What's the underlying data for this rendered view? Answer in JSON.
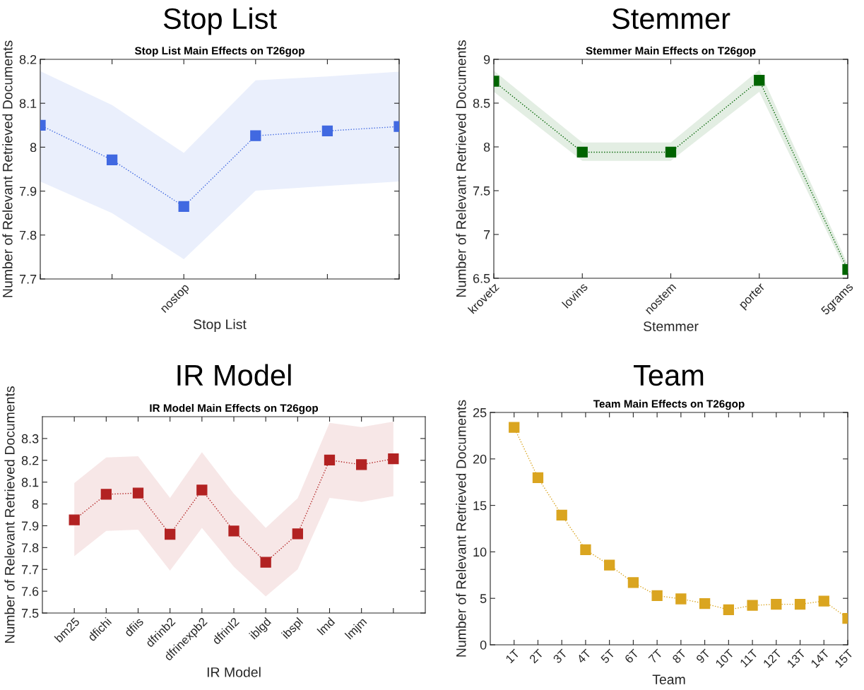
{
  "chart_data": [
    {
      "type": "line",
      "title": "Stop List",
      "subtitle": "Stop List Main Effects on T26gop",
      "xlabel": "Stop List",
      "ylabel": "Number of Relevant Retrieved Documents",
      "categories": [
        null,
        null,
        "nostop",
        null,
        null,
        null
      ],
      "ylim": [
        7.7,
        8.2
      ],
      "yticks": [
        7.7,
        7.8,
        7.9,
        8,
        8.1,
        8.2
      ],
      "marker": "square",
      "line_style": "dotted",
      "series": [
        {
          "color": "#4169e1",
          "values": [
            8.05,
            7.971,
            7.865,
            8.026,
            8.037,
            8.047
          ],
          "lower": [
            7.922,
            7.85,
            7.745,
            7.901,
            7.912,
            7.922
          ],
          "upper": [
            8.173,
            8.096,
            7.987,
            8.152,
            8.161,
            8.172
          ]
        }
      ]
    },
    {
      "type": "line",
      "title": "Stemmer",
      "subtitle": "Stemmer Main Effects on T26gop",
      "xlabel": "Stemmer",
      "ylabel": "Number of Relevant Retrieved Documents",
      "categories": [
        "krovetz",
        "lovins",
        "nostem",
        "porter",
        "5grams"
      ],
      "ylim": [
        6.5,
        9
      ],
      "yticks": [
        6.5,
        7,
        7.5,
        8,
        8.5,
        9
      ],
      "marker": "square",
      "line_style": "dotted",
      "series": [
        {
          "color": "#006400",
          "values": [
            8.75,
            7.94,
            7.94,
            8.76,
            6.6
          ],
          "lower": [
            8.63,
            7.84,
            7.84,
            8.63,
            6.54
          ],
          "upper": [
            8.87,
            8.05,
            8.05,
            8.88,
            6.66
          ]
        }
      ]
    },
    {
      "type": "line",
      "title": "IR Model",
      "subtitle": "IR Model Main Effects on T26gop",
      "xlabel": "IR Model",
      "ylabel": "Number of Relevant Retrieved Documents",
      "categories": [
        "bm25",
        "dfichi",
        "dfiis",
        "dfrinb2",
        "dfrinexpb2",
        "dfrinl2",
        "iblgd",
        "ibspl",
        "lmd",
        "lmjm",
        null
      ],
      "ylim": [
        7.5,
        8.4
      ],
      "yticks": [
        7.5,
        7.6,
        7.7,
        7.8,
        7.9,
        8,
        8.1,
        8.2,
        8.3
      ],
      "marker": "square",
      "line_style": "dotted",
      "series": [
        {
          "color": "#b22222",
          "values": [
            7.927,
            8.044,
            8.05,
            7.861,
            8.064,
            7.876,
            7.733,
            7.863,
            8.201,
            8.18,
            8.207
          ],
          "lower": [
            7.761,
            7.876,
            7.882,
            7.694,
            7.89,
            7.712,
            7.576,
            7.7,
            8.028,
            8.009,
            8.036
          ],
          "upper": [
            8.096,
            8.213,
            8.219,
            8.028,
            8.237,
            8.047,
            7.89,
            8.026,
            8.372,
            8.352,
            8.377
          ]
        }
      ]
    },
    {
      "type": "line",
      "title": "Team",
      "subtitle": "Team Main Effects on T26gop",
      "xlabel": "Team",
      "ylabel": "Number of Relevant Retrieved Documents",
      "categories": [
        "1T",
        "2T",
        "3T",
        "4T",
        "5T",
        "6T",
        "7T",
        "8T",
        "9T",
        "10T",
        "11T",
        "12T",
        "13T",
        "14T",
        "15T"
      ],
      "ylim": [
        0,
        25
      ],
      "yticks": [
        0,
        5,
        10,
        15,
        20,
        25
      ],
      "marker": "square",
      "line_style": "dotted",
      "series": [
        {
          "color": "#daa520",
          "values": [
            23.39,
            17.98,
            13.95,
            10.23,
            8.57,
            6.7,
            5.29,
            4.94,
            4.44,
            3.77,
            4.24,
            4.36,
            4.36,
            4.71,
            2.84
          ]
        }
      ]
    }
  ]
}
